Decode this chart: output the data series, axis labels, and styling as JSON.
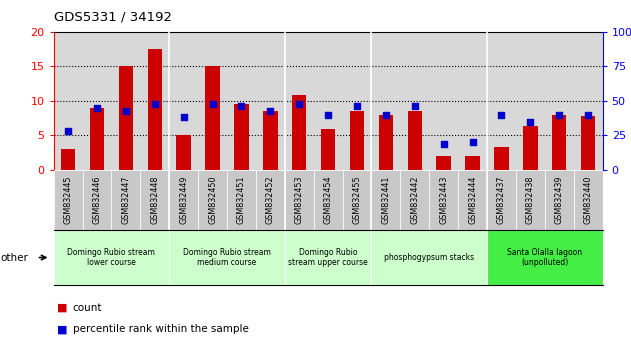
{
  "title": "GDS5331 / 34192",
  "samples": [
    "GSM832445",
    "GSM832446",
    "GSM832447",
    "GSM832448",
    "GSM832449",
    "GSM832450",
    "GSM832451",
    "GSM832452",
    "GSM832453",
    "GSM832454",
    "GSM832455",
    "GSM832441",
    "GSM832442",
    "GSM832443",
    "GSM832444",
    "GSM832437",
    "GSM832438",
    "GSM832439",
    "GSM832440"
  ],
  "counts": [
    3.0,
    9.0,
    15.0,
    17.5,
    5.0,
    15.0,
    9.5,
    8.5,
    10.8,
    6.0,
    8.5,
    8.0,
    8.5,
    2.0,
    2.0,
    3.3,
    6.3,
    8.0,
    7.8
  ],
  "percentiles": [
    28,
    45,
    43,
    48,
    38,
    48,
    46,
    43,
    48,
    40,
    46,
    40,
    46,
    19,
    20,
    40,
    35,
    40,
    40
  ],
  "bar_color": "#cc0000",
  "dot_color": "#0000cc",
  "ylim_left": [
    0,
    20
  ],
  "ylim_right": [
    0,
    100
  ],
  "yticks_left": [
    0,
    5,
    10,
    15,
    20
  ],
  "yticks_right": [
    0,
    25,
    50,
    75,
    100
  ],
  "groups": [
    {
      "label": "Domingo Rubio stream\nlower course",
      "start": 0,
      "end": 4,
      "color": "#ccffcc"
    },
    {
      "label": "Domingo Rubio stream\nmedium course",
      "start": 4,
      "end": 8,
      "color": "#ccffcc"
    },
    {
      "label": "Domingo Rubio\nstream upper course",
      "start": 8,
      "end": 11,
      "color": "#ccffcc"
    },
    {
      "label": "phosphogypsum stacks",
      "start": 11,
      "end": 15,
      "color": "#ccffcc"
    },
    {
      "label": "Santa Olalla lagoon\n(unpolluted)",
      "start": 15,
      "end": 19,
      "color": "#44ee44"
    }
  ],
  "grid_lines": [
    5,
    10,
    15
  ],
  "group_separator_color": "#888888",
  "plot_bg_color": "#d8d8d8",
  "tick_bg_color": "#c8c8c8",
  "legend_count_label": "count",
  "legend_pct_label": "percentile rank within the sample",
  "background_color": "#ffffff",
  "other_label": "other"
}
